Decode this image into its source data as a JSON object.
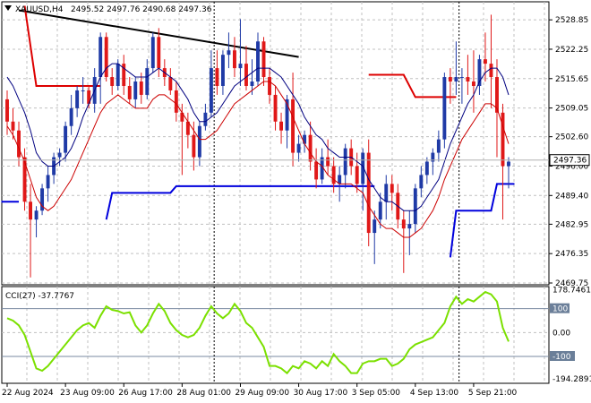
{
  "header": {
    "symbol": "XAUUSD,H4",
    "ohlc": "2495.52 2497.76 2490.68 2497.36"
  },
  "chart_data": [
    {
      "type": "candlestick",
      "title": "XAUUSD,H4",
      "ylim": [
        2469.75,
        2532.5
      ],
      "y_ticks": [
        "2528.85",
        "2522.25",
        "2515.65",
        "2509.05",
        "2502.60",
        "2496.00",
        "2489.40",
        "2482.95",
        "2476.35",
        "2469.75"
      ],
      "current_price": "2497.36",
      "x_ticks": [
        "22 Aug 2024",
        "23 Aug 09:00",
        "26 Aug 17:00",
        "28 Aug 01:00",
        "29 Aug 09:00",
        "30 Aug 17:00",
        "3 Sep 05:00",
        "4 Sep 13:00",
        "5 Sep 21:00"
      ],
      "candles": [
        [
          2511,
          2513,
          2503,
          2506
        ],
        [
          2506,
          2509,
          2502,
          2504
        ],
        [
          2504,
          2506,
          2496,
          2498
        ],
        [
          2498,
          2500,
          2486,
          2488
        ],
        [
          2488,
          2492,
          2471,
          2484
        ],
        [
          2484,
          2487,
          2480,
          2486
        ],
        [
          2486,
          2492,
          2485,
          2491
        ],
        [
          2491,
          2496,
          2488,
          2494
        ],
        [
          2494,
          2499,
          2492,
          2498
        ],
        [
          2498,
          2500,
          2496,
          2499
        ],
        [
          2499,
          2506,
          2497,
          2505
        ],
        [
          2505,
          2512,
          2503,
          2509
        ],
        [
          2509,
          2514,
          2507,
          2513
        ],
        [
          2513,
          2516,
          2510,
          2513
        ],
        [
          2513,
          2514,
          2509,
          2510
        ],
        [
          2510,
          2518,
          2508,
          2516
        ],
        [
          2516,
          2526,
          2510,
          2525
        ],
        [
          2525,
          2526,
          2515,
          2516
        ],
        [
          2516,
          2518,
          2512,
          2514
        ],
        [
          2514,
          2520,
          2513,
          2519
        ],
        [
          2519,
          2521,
          2512,
          2514
        ],
        [
          2514,
          2516,
          2510,
          2511
        ],
        [
          2511,
          2516,
          2509,
          2515
        ],
        [
          2515,
          2517,
          2510,
          2512
        ],
        [
          2512,
          2520,
          2511,
          2518
        ],
        [
          2518,
          2526,
          2517,
          2525
        ],
        [
          2525,
          2527,
          2516,
          2518
        ],
        [
          2518,
          2520,
          2514,
          2516
        ],
        [
          2516,
          2518,
          2512,
          2513
        ],
        [
          2513,
          2515,
          2506,
          2508
        ],
        [
          2508,
          2510,
          2494,
          2506
        ],
        [
          2506,
          2508,
          2500,
          2503
        ],
        [
          2503,
          2506,
          2495,
          2498
        ],
        [
          2498,
          2506,
          2496,
          2505
        ],
        [
          2505,
          2510,
          2504,
          2508
        ],
        [
          2508,
          2522,
          2507,
          2518
        ],
        [
          2518,
          2522,
          2512,
          2514
        ],
        [
          2514,
          2522,
          2512,
          2521
        ],
        [
          2521,
          2526,
          2518,
          2522
        ],
        [
          2522,
          2525,
          2516,
          2518
        ],
        [
          2518,
          2529,
          2514,
          2519
        ],
        [
          2519,
          2523,
          2513,
          2514
        ],
        [
          2514,
          2520,
          2512,
          2515
        ],
        [
          2515,
          2526,
          2514,
          2524
        ],
        [
          2524,
          2525,
          2514,
          2516
        ],
        [
          2516,
          2518,
          2510,
          2512
        ],
        [
          2512,
          2514,
          2504,
          2506
        ],
        [
          2506,
          2508,
          2501,
          2504
        ],
        [
          2504,
          2512,
          2500,
          2511
        ],
        [
          2511,
          2517,
          2496,
          2499
        ],
        [
          2499,
          2503,
          2497,
          2501
        ],
        [
          2501,
          2504,
          2499,
          2503
        ],
        [
          2503,
          2506,
          2495,
          2497
        ],
        [
          2497,
          2500,
          2491,
          2493
        ],
        [
          2493,
          2500,
          2492,
          2498
        ],
        [
          2498,
          2502,
          2494,
          2496
        ],
        [
          2496,
          2498,
          2490,
          2492
        ],
        [
          2492,
          2496,
          2488,
          2494
        ],
        [
          2494,
          2501,
          2491,
          2500
        ],
        [
          2500,
          2502,
          2494,
          2496
        ],
        [
          2496,
          2499,
          2490,
          2492
        ],
        [
          2492,
          2500,
          2486,
          2499
        ],
        [
          2499,
          2502,
          2478,
          2481
        ],
        [
          2481,
          2486,
          2474,
          2484
        ],
        [
          2484,
          2490,
          2482,
          2488
        ],
        [
          2488,
          2494,
          2484,
          2492
        ],
        [
          2492,
          2494,
          2486,
          2490
        ],
        [
          2490,
          2492,
          2482,
          2484
        ],
        [
          2484,
          2486,
          2472,
          2482
        ],
        [
          2482,
          2486,
          2476,
          2483
        ],
        [
          2483,
          2492,
          2481,
          2491
        ],
        [
          2491,
          2496,
          2489,
          2494
        ],
        [
          2494,
          2498,
          2492,
          2497
        ],
        [
          2497,
          2500,
          2494,
          2499
        ],
        [
          2499,
          2504,
          2497,
          2502
        ],
        [
          2502,
          2517,
          2500,
          2516
        ],
        [
          2516,
          2518,
          2510,
          2515
        ],
        [
          2515,
          2524,
          2512,
          2516
        ],
        [
          2516,
          2518,
          2510,
          2516
        ],
        [
          2516,
          2521,
          2512,
          2515
        ],
        [
          2515,
          2522,
          2508,
          2514
        ],
        [
          2514,
          2521,
          2512,
          2520
        ],
        [
          2520,
          2526,
          2515,
          2519
        ],
        [
          2519,
          2530,
          2509,
          2516
        ],
        [
          2516,
          2520,
          2498,
          2508
        ],
        [
          2508,
          2510,
          2484,
          2496
        ],
        [
          2496,
          2498,
          2491,
          2497
        ]
      ],
      "series": [
        {
          "type": "ma",
          "color": "#000080",
          "values": [
            2516,
            2514,
            2511,
            2508,
            2504,
            2499,
            2497,
            2496,
            2496,
            2497,
            2498,
            2500,
            2503,
            2507,
            2510,
            2513,
            2516,
            2518,
            2519,
            2519,
            2518,
            2517,
            2516,
            2516,
            2516,
            2517,
            2518,
            2517,
            2516,
            2515,
            2513,
            2511,
            2508,
            2506,
            2506,
            2507,
            2508,
            2510,
            2512,
            2514,
            2515,
            2516,
            2517,
            2518,
            2518,
            2518,
            2517,
            2516,
            2514,
            2512,
            2510,
            2507,
            2505,
            2503,
            2502,
            2500,
            2499,
            2498,
            2498,
            2498,
            2497,
            2496,
            2493,
            2491,
            2489,
            2488,
            2488,
            2487,
            2486,
            2486,
            2486,
            2487,
            2489,
            2491,
            2493,
            2497,
            2501,
            2504,
            2507,
            2510,
            2512,
            2515,
            2517,
            2518,
            2518,
            2516,
            2512
          ]
        },
        {
          "type": "ma",
          "color": "#cc0000",
          "values": [
            2505,
            2503,
            2500,
            2497,
            2493,
            2489,
            2487,
            2486,
            2487,
            2489,
            2491,
            2493,
            2496,
            2499,
            2502,
            2505,
            2508,
            2510,
            2511,
            2512,
            2511,
            2510,
            2509,
            2509,
            2509,
            2511,
            2512,
            2512,
            2511,
            2510,
            2508,
            2506,
            2504,
            2502,
            2502,
            2503,
            2504,
            2506,
            2508,
            2510,
            2511,
            2512,
            2513,
            2514,
            2515,
            2515,
            2514,
            2512,
            2510,
            2507,
            2504,
            2501,
            2499,
            2497,
            2496,
            2494,
            2493,
            2492,
            2492,
            2492,
            2491,
            2490,
            2487,
            2485,
            2483,
            2482,
            2482,
            2481,
            2480,
            2480,
            2481,
            2482,
            2484,
            2486,
            2489,
            2493,
            2496,
            2499,
            2502,
            2504,
            2506,
            2508,
            2510,
            2510,
            2509,
            2505,
            2501
          ]
        }
      ]
    },
    {
      "type": "line",
      "title": "CCI(27) -37.7767",
      "ylim": [
        -205,
        185
      ],
      "levels": [
        "100",
        "0.00",
        "-100"
      ],
      "y_ticks": [
        "178.7461",
        "100",
        "0.00",
        "-100",
        "-194.2891"
      ],
      "series": [
        {
          "name": "CCI(27)",
          "color": "#7be000",
          "values": [
            60,
            50,
            30,
            -10,
            -80,
            -150,
            -160,
            -140,
            -110,
            -80,
            -50,
            -20,
            10,
            30,
            40,
            20,
            70,
            110,
            95,
            90,
            80,
            85,
            30,
            0,
            30,
            80,
            120,
            90,
            40,
            10,
            -10,
            -20,
            -10,
            20,
            70,
            110,
            80,
            60,
            80,
            120,
            90,
            40,
            20,
            -20,
            -60,
            -140,
            -140,
            -150,
            -170,
            -140,
            -150,
            -120,
            -130,
            -150,
            -120,
            -140,
            -90,
            -120,
            -140,
            -170,
            -170,
            -130,
            -120,
            -120,
            -110,
            -110,
            -140,
            -130,
            -110,
            -70,
            -50,
            -40,
            -30,
            -20,
            10,
            40,
            110,
            150,
            120,
            140,
            130,
            150,
            170,
            160,
            130,
            20,
            -37.78
          ]
        }
      ]
    }
  ]
}
